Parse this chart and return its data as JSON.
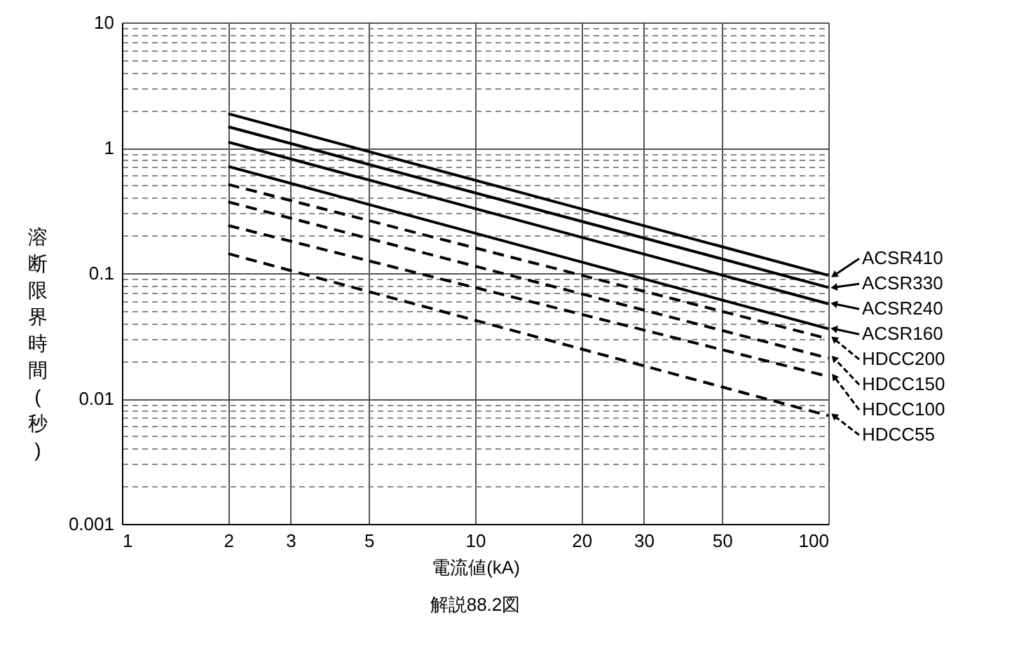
{
  "chart_data": {
    "type": "line",
    "xlabel": "電流値(kA)",
    "ylabel": "溶断限界時間(秒)",
    "x": [
      2,
      100
    ],
    "log": "xy",
    "xlim": [
      1,
      100
    ],
    "xticks": [
      1,
      2,
      3,
      5,
      10,
      20,
      30,
      50,
      100
    ],
    "ylim": [
      0.001,
      10
    ],
    "yticks": [
      0.001,
      {
        "value": 0.002,
        "label": null
      },
      {
        "value": 0.003,
        "label": null
      },
      {
        "value": 0.004,
        "label": null
      },
      {
        "value": 0.005,
        "label": null
      },
      {
        "value": 0.006,
        "label": null
      },
      {
        "value": 0.007,
        "label": null
      },
      {
        "value": 0.008,
        "label": null
      },
      {
        "value": 0.009,
        "label": null
      },
      0.01,
      {
        "value": 0.02,
        "label": null
      },
      {
        "value": 0.03,
        "label": null
      },
      {
        "value": 0.04,
        "label": null
      },
      {
        "value": 0.05,
        "label": null
      },
      {
        "value": 0.06,
        "label": null
      },
      {
        "value": 0.07,
        "label": null
      },
      {
        "value": 0.08,
        "label": null
      },
      {
        "value": 0.09,
        "label": null
      },
      0.1,
      {
        "value": 0.2,
        "label": null
      },
      {
        "value": 0.3,
        "label": null
      },
      {
        "value": 0.4,
        "label": null
      },
      {
        "value": 0.5,
        "label": null
      },
      {
        "value": 0.6,
        "label": null
      },
      {
        "value": 0.7,
        "label": null
      },
      {
        "value": 0.8,
        "label": null
      },
      {
        "value": 0.9,
        "label": null
      },
      1,
      {
        "value": 2,
        "label": null
      },
      {
        "value": 3,
        "label": null
      },
      {
        "value": 4,
        "label": null
      },
      {
        "value": 5,
        "label": null
      },
      {
        "value": 6,
        "label": null
      },
      {
        "value": 7,
        "label": null
      },
      {
        "value": 8,
        "label": null
      },
      {
        "value": 9,
        "label": null
      },
      10
    ],
    "grid": true,
    "legend": "right",
    "marker": "none",
    "series": [
      {
        "name": "ACSR410",
        "color": "#000000",
        "line_style": "solid",
        "values": [
          1.87,
          0.096
        ]
      },
      {
        "name": "ACSR330",
        "color": "#000000",
        "line_style": "solid",
        "values": [
          1.47,
          0.077
        ]
      },
      {
        "name": "ACSR240",
        "color": "#000000",
        "line_style": "solid",
        "values": [
          1.11,
          0.057
        ]
      },
      {
        "name": "ACSR160",
        "color": "#000000",
        "line_style": "solid",
        "values": [
          0.71,
          0.036
        ]
      },
      {
        "name": "HDCC200",
        "color": "#000000",
        "line_style": "dashed",
        "values": [
          0.51,
          0.03
        ]
      },
      {
        "name": "HDCC150",
        "color": "#000000",
        "line_style": "dashed",
        "values": [
          0.37,
          0.021
        ]
      },
      {
        "name": "HDCC100",
        "color": "#000000",
        "line_style": "dashed",
        "values": [
          0.24,
          0.015
        ]
      },
      {
        "name": "HDCC55",
        "color": "#000000",
        "line_style": "dashed",
        "values": [
          0.143,
          0.0073
        ]
      }
    ],
    "annotations": [
      "解説88.2図"
    ]
  }
}
